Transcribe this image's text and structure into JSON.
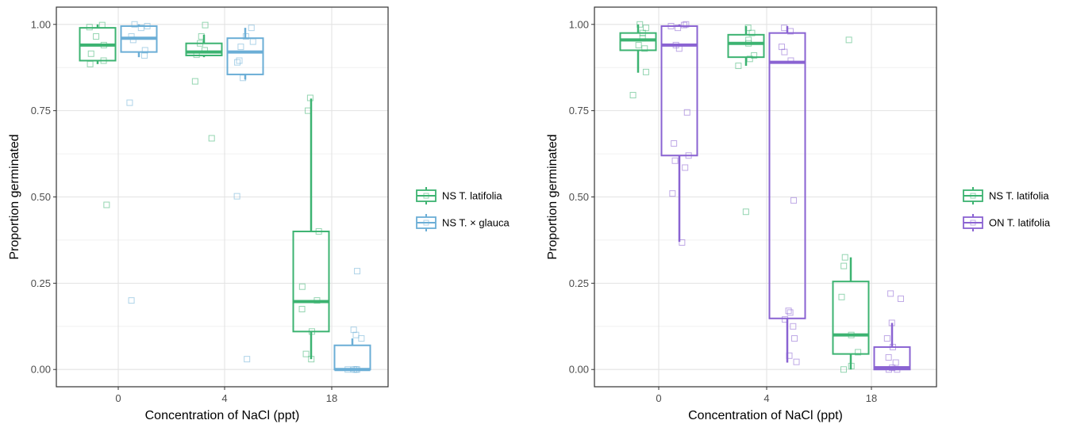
{
  "chart_data": [
    {
      "type": "box",
      "xlabel": "Concentration of NaCl (ppt)",
      "ylabel": "Proportion germinated",
      "categories": [
        "0",
        "4",
        "18"
      ],
      "y_ticks": [
        "0.00",
        "0.25",
        "0.50",
        "0.75",
        "1.00"
      ],
      "ylim": [
        -0.05,
        1.05
      ],
      "grid": true,
      "legend_position": "right",
      "series": [
        {
          "name": "NS T. latifolia",
          "color": "#3cb371",
          "boxes": [
            {
              "category": "0",
              "q1": 0.895,
              "median": 0.94,
              "q3": 0.99,
              "lower": 0.885,
              "upper": 1.0,
              "points": [
                0.998,
                0.992,
                0.965,
                0.94,
                0.915,
                0.895,
                0.885,
                0.477
              ]
            },
            {
              "category": "4",
              "q1": 0.91,
              "median": 0.92,
              "q3": 0.945,
              "lower": 0.905,
              "upper": 0.97,
              "points": [
                0.998,
                0.965,
                0.945,
                0.925,
                0.912,
                0.835,
                0.67
              ]
            },
            {
              "category": "18",
              "q1": 0.11,
              "median": 0.197,
              "q3": 0.4,
              "lower": 0.03,
              "upper": 0.785,
              "points": [
                0.787,
                0.75,
                0.4,
                0.24,
                0.2,
                0.175,
                0.11,
                0.045,
                0.03
              ]
            }
          ]
        },
        {
          "name": "NS T. × glauca",
          "color": "#6baed6",
          "boxes": [
            {
              "category": "0",
              "q1": 0.92,
              "median": 0.96,
              "q3": 0.995,
              "lower": 0.905,
              "upper": 1.0,
              "points": [
                1.0,
                0.995,
                0.99,
                0.965,
                0.955,
                0.925,
                0.91,
                0.773,
                0.2
              ]
            },
            {
              "category": "4",
              "q1": 0.855,
              "median": 0.92,
              "q3": 0.96,
              "lower": 0.84,
              "upper": 0.99,
              "points": [
                0.99,
                0.965,
                0.95,
                0.935,
                0.895,
                0.89,
                0.845,
                0.502,
                0.03
              ]
            },
            {
              "category": "18",
              "q1": 0.0,
              "median": 0.0,
              "q3": 0.07,
              "lower": 0.0,
              "upper": 0.09,
              "points": [
                0.285,
                0.115,
                0.1,
                0.09,
                0.0,
                0.0,
                0.0,
                0.0
              ]
            }
          ]
        }
      ]
    },
    {
      "type": "box",
      "xlabel": "Concentration of NaCl (ppt)",
      "ylabel": "Proportion germinated",
      "categories": [
        "0",
        "4",
        "18"
      ],
      "y_ticks": [
        "0.00",
        "0.25",
        "0.50",
        "0.75",
        "1.00"
      ],
      "ylim": [
        -0.05,
        1.05
      ],
      "grid": true,
      "legend_position": "right",
      "series": [
        {
          "name": "NS T. latifolia",
          "color": "#3cb371",
          "boxes": [
            {
              "category": "0",
              "q1": 0.925,
              "median": 0.955,
              "q3": 0.975,
              "lower": 0.86,
              "upper": 1.0,
              "points": [
                1.0,
                0.99,
                0.975,
                0.96,
                0.94,
                0.93,
                0.862,
                0.795
              ]
            },
            {
              "category": "4",
              "q1": 0.905,
              "median": 0.945,
              "q3": 0.97,
              "lower": 0.88,
              "upper": 0.995,
              "points": [
                0.99,
                0.975,
                0.955,
                0.945,
                0.91,
                0.9,
                0.88,
                0.457
              ]
            },
            {
              "category": "18",
              "q1": 0.045,
              "median": 0.1,
              "q3": 0.255,
              "lower": 0.0,
              "upper": 0.325,
              "points": [
                0.955,
                0.325,
                0.3,
                0.21,
                0.1,
                0.05,
                0.01,
                0.0
              ]
            }
          ]
        },
        {
          "name": "ON T. latifolia",
          "color": "#8a63d2",
          "boxes": [
            {
              "category": "0",
              "q1": 0.62,
              "median": 0.94,
              "q3": 0.995,
              "lower": 0.37,
              "upper": 1.0,
              "points": [
                1.0,
                0.998,
                0.995,
                0.99,
                0.94,
                0.93,
                0.745,
                0.655,
                0.62,
                0.605,
                0.585,
                0.51,
                0.368
              ]
            },
            {
              "category": "4",
              "q1": 0.148,
              "median": 0.89,
              "q3": 0.975,
              "lower": 0.02,
              "upper": 0.995,
              "points": [
                0.99,
                0.98,
                0.935,
                0.92,
                0.895,
                0.49,
                0.17,
                0.165,
                0.145,
                0.125,
                0.09,
                0.04,
                0.022
              ]
            },
            {
              "category": "18",
              "q1": 0.0,
              "median": 0.005,
              "q3": 0.065,
              "lower": 0.0,
              "upper": 0.135,
              "points": [
                0.22,
                0.205,
                0.135,
                0.09,
                0.065,
                0.035,
                0.02,
                0.005,
                0.0,
                0.0
              ]
            }
          ]
        }
      ]
    }
  ]
}
